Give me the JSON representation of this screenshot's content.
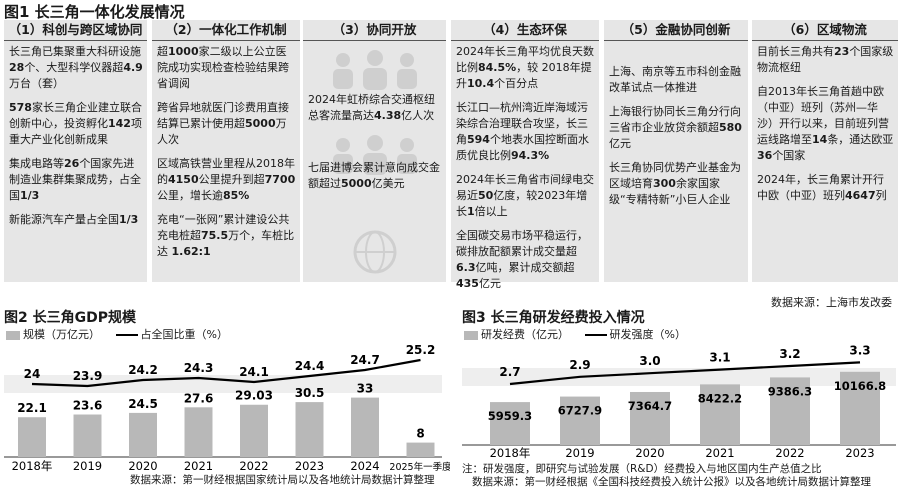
{
  "figure1": {
    "title": "图1 长三角一体化发展情况",
    "columns": [
      {
        "heading": "（1）科创与跨区域协同",
        "paragraphs": [
          [
            {
              "t": "长三角已集聚重大科研设施"
            },
            {
              "t": "28",
              "b": true
            },
            {
              "t": "个、大型科学仪器超"
            },
            {
              "t": "4.9",
              "b": true
            },
            {
              "t": "万台（套）"
            }
          ],
          [
            {
              "t": "578",
              "b": true
            },
            {
              "t": "家长三角企业建立联合创新中心，投资孵化"
            },
            {
              "t": "142",
              "b": true
            },
            {
              "t": "项重大产业化创新成果"
            }
          ],
          [
            {
              "t": "集成电路等"
            },
            {
              "t": "26",
              "b": true
            },
            {
              "t": "个国家先进制造业集群集聚成势，占全国"
            },
            {
              "t": "1/3",
              "b": true
            }
          ],
          [
            {
              "t": "新能源汽车产量占全国"
            },
            {
              "t": "1/3",
              "b": true
            }
          ]
        ]
      },
      {
        "heading": "（2）一体化工作机制",
        "paragraphs": [
          [
            {
              "t": "超"
            },
            {
              "t": "1000",
              "b": true
            },
            {
              "t": "家二级以上公立医院成功实现检查检验结果跨省调阅"
            }
          ],
          [
            {
              "t": "跨省异地就医门诊费用直接结算已累计使用超"
            },
            {
              "t": "5000",
              "b": true
            },
            {
              "t": "万人次"
            }
          ],
          [
            {
              "t": "区域高铁营业里程从2018年的"
            },
            {
              "t": "4150",
              "b": true
            },
            {
              "t": "公里提升到超"
            },
            {
              "t": "7700",
              "b": true
            },
            {
              "t": "公里，增长逾"
            },
            {
              "t": "85%",
              "b": true
            }
          ],
          [
            {
              "t": "充电“一张网”累计建设公共充电桩超"
            },
            {
              "t": "75.5",
              "b": true
            },
            {
              "t": "万个，车桩比达 "
            },
            {
              "t": "1.62:1",
              "b": true
            }
          ]
        ]
      },
      {
        "heading": "（3）协同开放",
        "paragraphs": [
          [
            {
              "t": "2024年虹桥综合交通枢纽总客流量高达"
            },
            {
              "t": "4.38",
              "b": true
            },
            {
              "t": "亿人次"
            }
          ],
          [
            {
              "t": "七届进博会累计意向成交金额超过"
            },
            {
              "t": "5000",
              "b": true
            },
            {
              "t": "亿美元"
            }
          ]
        ]
      },
      {
        "heading": "（4）生态环保",
        "paragraphs": [
          [
            {
              "t": "2024年长三角平均优良天数比例"
            },
            {
              "t": "84.5%",
              "b": true
            },
            {
              "t": "，较 2018年提升"
            },
            {
              "t": "10.4",
              "b": true
            },
            {
              "t": "个百分点"
            }
          ],
          [
            {
              "t": "长江口—杭州湾近岸海域污染综合治理联合攻坚，长三角"
            },
            {
              "t": "594",
              "b": true
            },
            {
              "t": "个地表水国控断面水质优良比例"
            },
            {
              "t": "94.3%",
              "b": true
            }
          ],
          [
            {
              "t": "2024年长三角省市间绿电交易近"
            },
            {
              "t": "50",
              "b": true
            },
            {
              "t": "亿度，较2023年增长"
            },
            {
              "t": "1",
              "b": true
            },
            {
              "t": "倍以上"
            }
          ],
          [
            {
              "t": "全国碳交易市场平稳运行，碳排放配额累计成交量超"
            },
            {
              "t": "6.3",
              "b": true
            },
            {
              "t": "亿吨，累计成交额超"
            },
            {
              "t": "435",
              "b": true
            },
            {
              "t": "亿元"
            }
          ]
        ]
      },
      {
        "heading": "（5）金融协同创新",
        "paragraphs": [
          [
            {
              "t": "上海、南京等五市科创金融改革试点一体推进"
            }
          ],
          [
            {
              "t": "上海银行协同长三角分行向三省市企业放贷余额超"
            },
            {
              "t": "580",
              "b": true
            },
            {
              "t": "亿元"
            }
          ],
          [
            {
              "t": "长三角协同优势产业基金为区域培育"
            },
            {
              "t": "300",
              "b": true
            },
            {
              "t": "余家国家级“专精特新”小巨人企业"
            }
          ]
        ]
      },
      {
        "heading": "（6）区域物流",
        "paragraphs": [
          [
            {
              "t": "目前长三角共有"
            },
            {
              "t": "23",
              "b": true
            },
            {
              "t": "个国家级物流枢纽"
            }
          ],
          [
            {
              "t": "自2013年长三角首趟中欧（中亚）班列（苏州—华沙）开行以来，目前班列营运线路增至"
            },
            {
              "t": "14",
              "b": true
            },
            {
              "t": "条，通达欧亚"
            },
            {
              "t": "36",
              "b": true
            },
            {
              "t": "个国家"
            }
          ],
          [
            {
              "t": "2024年，长三角累计开行中欧（中亚）班列"
            },
            {
              "t": "4647",
              "b": true
            },
            {
              "t": "列"
            }
          ]
        ]
      }
    ],
    "source": "数据来源：上海市发改委"
  },
  "chart_data": [
    {
      "type": "bar",
      "title": "图2 长三角GDP规模",
      "categories": [
        "2018年",
        "2019",
        "2020",
        "2021",
        "2022",
        "2023",
        "2024",
        "2025年一季度"
      ],
      "series": [
        {
          "name": "规模（万亿元）",
          "type": "bar",
          "values": [
            22.1,
            23.6,
            24.5,
            27.6,
            29.03,
            30.5,
            33,
            8
          ]
        },
        {
          "name": "占全国比重（%）",
          "type": "line",
          "values": [
            24,
            23.9,
            24.2,
            24.3,
            24.1,
            24.4,
            24.7,
            25.2
          ]
        }
      ],
      "source": "数据来源：第一财经根据国家统计局以及各地统计局数据计算整理"
    },
    {
      "type": "bar",
      "title": "图3 长三角研发经费投入情况",
      "categories": [
        "2018年",
        "2019",
        "2020",
        "2021",
        "2022",
        "2023"
      ],
      "series": [
        {
          "name": "研发经费（亿元）",
          "type": "bar",
          "values": [
            5959.3,
            6727.9,
            7364.7,
            8422.2,
            9386.3,
            10166.8
          ]
        },
        {
          "name": "研发强度（%）",
          "type": "line",
          "values": [
            2.7,
            2.9,
            3.0,
            3.1,
            3.2,
            3.3
          ]
        }
      ],
      "value_labels": {
        "bars": [
          "5959.3",
          "6727.9",
          "7364.7",
          "8422.2",
          "9386.3",
          "10166.8"
        ],
        "line": [
          "2.7",
          "2.9",
          "3.0",
          "3.1",
          "3.2",
          "3.3"
        ]
      },
      "note": "注：研发强度，即研究与试验发展（R&D）经费投入与地区国内生产总值之比",
      "source": "数据来源：第一财经根据《全国科技经费投入统计公报》以及各地统计局数据计算整理"
    }
  ]
}
